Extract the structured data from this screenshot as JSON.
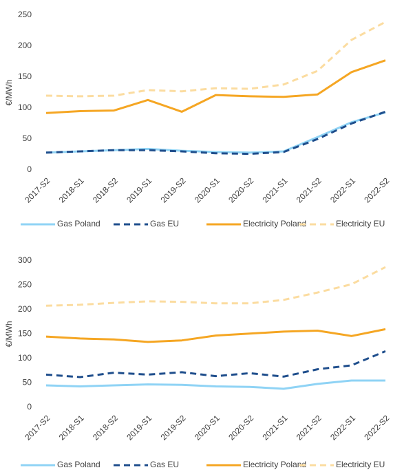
{
  "chart_data": [
    {
      "type": "line",
      "y_label": "€/MWh",
      "categories": [
        "2017-S2",
        "2018-S1",
        "2018-S2",
        "2019-S1",
        "2019-S2",
        "2020-S1",
        "2020-S2",
        "2021-S1",
        "2021-S2",
        "2022-S1",
        "2022-S2"
      ],
      "ylim": [
        0,
        250
      ],
      "yticks": [
        0,
        50,
        100,
        150,
        200,
        250
      ],
      "grid": false,
      "series": [
        {
          "name": "Gas Poland",
          "color": "#8fd3f5",
          "style": "solid",
          "values": [
            28,
            30,
            32,
            34,
            31,
            29,
            28,
            30,
            53,
            77,
            93
          ]
        },
        {
          "name": "Gas EU",
          "color": "#1f4e8c",
          "style": "dashed",
          "values": [
            28,
            30,
            32,
            32,
            30,
            27,
            26,
            29,
            50,
            75,
            94
          ]
        },
        {
          "name": "Electricity Poland",
          "color": "#f5a623",
          "style": "solid",
          "values": [
            92,
            95,
            96,
            113,
            94,
            121,
            119,
            118,
            122,
            158,
            177
          ]
        },
        {
          "name": "Electricity EU",
          "color": "#fbdca0",
          "style": "dashed",
          "values": [
            120,
            119,
            120,
            129,
            127,
            132,
            131,
            138,
            160,
            210,
            239
          ]
        }
      ]
    },
    {
      "type": "line",
      "y_label": "€/MWh",
      "categories": [
        "2017-S2",
        "2018-S1",
        "2018-S2",
        "2019-S1",
        "2019-S2",
        "2020-S1",
        "2020-S2",
        "2021-S1",
        "2021-S2",
        "2022-S1",
        "2022-S2"
      ],
      "ylim": [
        0,
        300
      ],
      "yticks": [
        0,
        50,
        100,
        150,
        200,
        250,
        300
      ],
      "grid": false,
      "series": [
        {
          "name": "Gas Poland",
          "color": "#8fd3f5",
          "style": "solid",
          "values": [
            45,
            43,
            45,
            47,
            46,
            43,
            42,
            38,
            48,
            55,
            55
          ]
        },
        {
          "name": "Gas EU",
          "color": "#1f4e8c",
          "style": "dashed",
          "values": [
            67,
            62,
            71,
            67,
            72,
            64,
            70,
            63,
            78,
            86,
            115
          ]
        },
        {
          "name": "Electricity Poland",
          "color": "#f5a623",
          "style": "solid",
          "values": [
            145,
            141,
            139,
            134,
            137,
            147,
            151,
            155,
            157,
            146,
            160
          ]
        },
        {
          "name": "Electricity EU",
          "color": "#fbdca0",
          "style": "dashed",
          "values": [
            208,
            210,
            214,
            217,
            216,
            213,
            213,
            220,
            235,
            252,
            287
          ]
        }
      ]
    }
  ]
}
